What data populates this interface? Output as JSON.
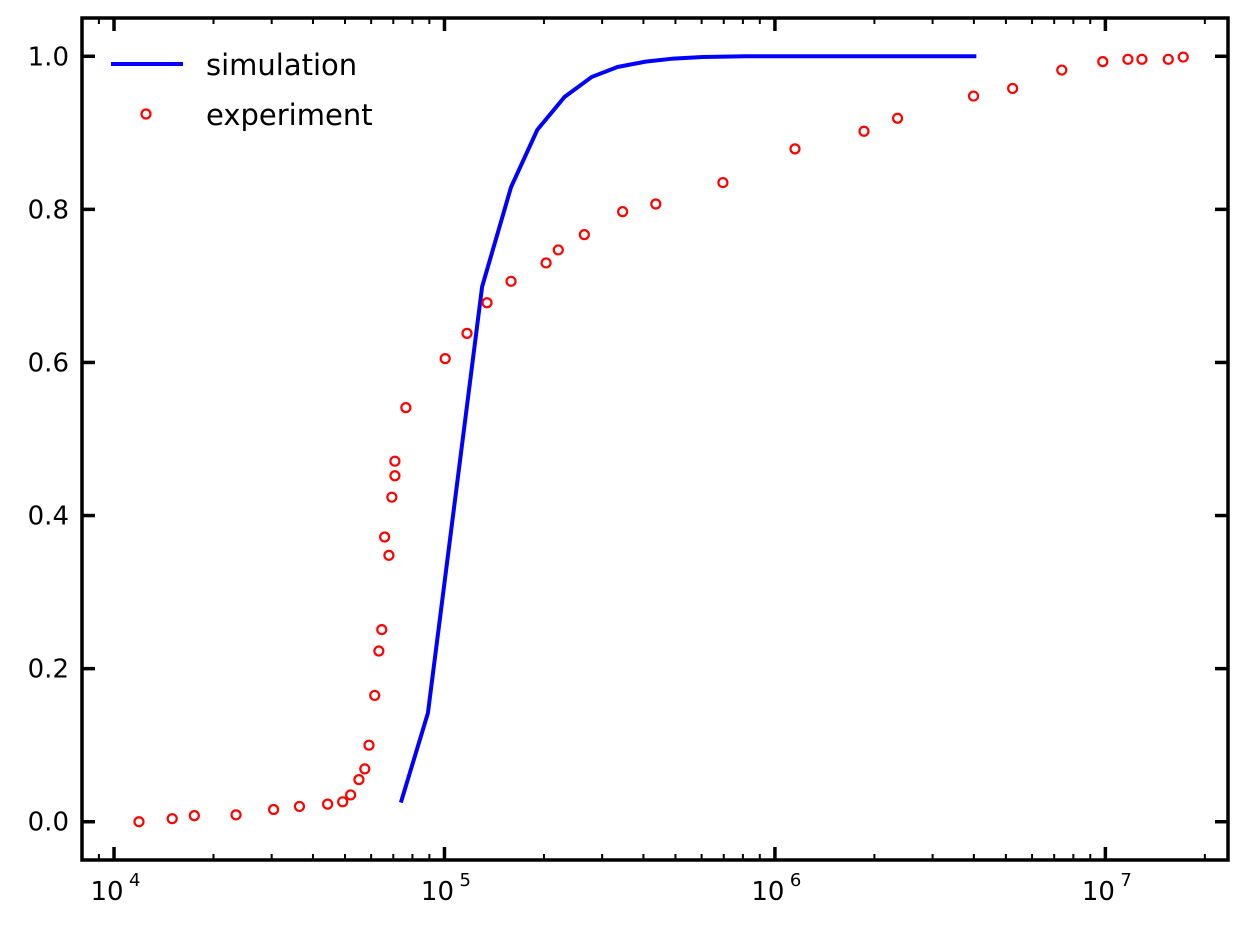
{
  "chart_data": {
    "type": "scatter",
    "title": "",
    "xlabel": "",
    "ylabel": "",
    "xscale": "log",
    "xlim": [
      8000,
      23500000
    ],
    "ylim": [
      -0.05,
      1.05
    ],
    "grid": false,
    "legend_position": "top-left",
    "xticks": [
      10000,
      100000,
      1000000,
      10000000
    ],
    "xtick_labels": [
      {
        "base": "10",
        "exp": "4"
      },
      {
        "base": "10",
        "exp": "5"
      },
      {
        "base": "10",
        "exp": "6"
      },
      {
        "base": "10",
        "exp": "7"
      }
    ],
    "yticks": [
      0.0,
      0.2,
      0.4,
      0.6,
      0.8,
      1.0
    ],
    "ytick_labels": [
      "0.0",
      "0.2",
      "0.4",
      "0.6",
      "0.8",
      "1.0"
    ],
    "series": [
      {
        "name": "simulation",
        "kind": "line",
        "color": "#0000ff",
        "x": [
          73800,
          89100,
          105000,
          130000,
          159000,
          191000,
          231000,
          279000,
          334000,
          406000,
          493000,
          604000,
          817000,
          4070000
        ],
        "y": [
          0.025,
          0.142,
          0.384,
          0.699,
          0.829,
          0.904,
          0.947,
          0.973,
          0.986,
          0.993,
          0.997,
          0.999,
          1.0,
          1.0
        ]
      },
      {
        "name": "experiment",
        "kind": "scatter",
        "color": "#ff0000",
        "x": [
          11900,
          15000,
          17500,
          23400,
          30400,
          36400,
          44300,
          49200,
          52000,
          55100,
          57400,
          59100,
          61500,
          63300,
          64600,
          65900,
          67900,
          69300,
          70800,
          70800,
          76400,
          100500,
          117000,
          134500,
          159000,
          203000,
          221000,
          265000,
          346000,
          436000,
          696000,
          1150000,
          1860000,
          2350000,
          3990000,
          5240000,
          7380000,
          9820000,
          11700000,
          12900000,
          15500000,
          17200000
        ],
        "y": [
          0.0,
          0.004,
          0.008,
          0.009,
          0.016,
          0.02,
          0.023,
          0.026,
          0.035,
          0.055,
          0.069,
          0.1,
          0.165,
          0.223,
          0.251,
          0.372,
          0.348,
          0.424,
          0.452,
          0.471,
          0.541,
          0.605,
          0.638,
          0.678,
          0.706,
          0.73,
          0.747,
          0.767,
          0.797,
          0.807,
          0.835,
          0.879,
          0.902,
          0.919,
          0.948,
          0.958,
          0.982,
          0.993,
          0.996,
          0.996,
          0.996,
          0.999
        ]
      }
    ]
  }
}
